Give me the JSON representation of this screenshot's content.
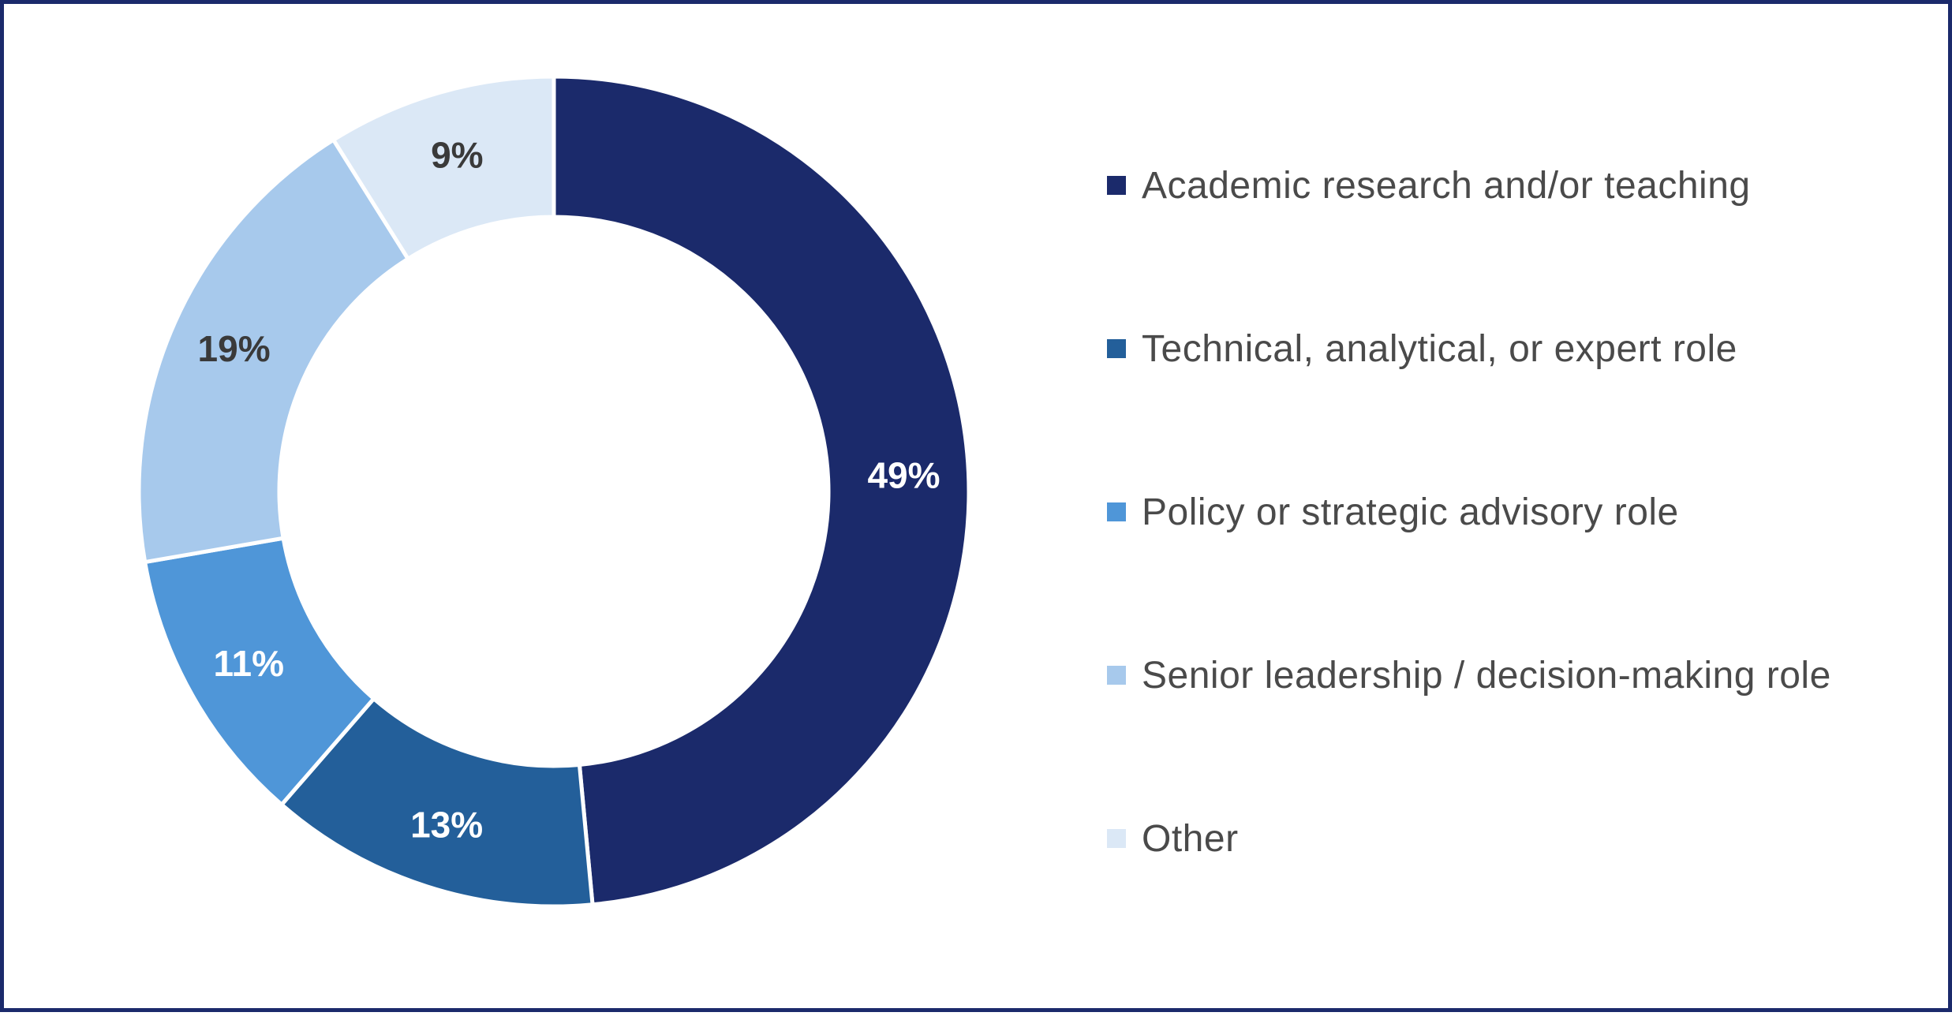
{
  "chart_data": {
    "type": "pie",
    "variant": "donut",
    "title": "",
    "categories": [
      "Academic research and/or teaching",
      "Technical, analytical, or expert role",
      "Policy or strategic advisory role",
      "Senior leadership / decision-making role",
      "Other"
    ],
    "values": [
      49,
      13,
      11,
      19,
      9
    ],
    "labels": [
      "49%",
      "13%",
      "11%",
      "19%",
      "9%"
    ],
    "colors": [
      "#1b2a6b",
      "#235f9a",
      "#4f96d8",
      "#a7c9ec",
      "#dbe8f6"
    ],
    "label_colors": [
      "#ffffff",
      "#ffffff",
      "#ffffff",
      "#3a3a3a",
      "#3a3a3a"
    ],
    "start_angle": "12 o'clock, clockwise",
    "legend_position": "right"
  }
}
